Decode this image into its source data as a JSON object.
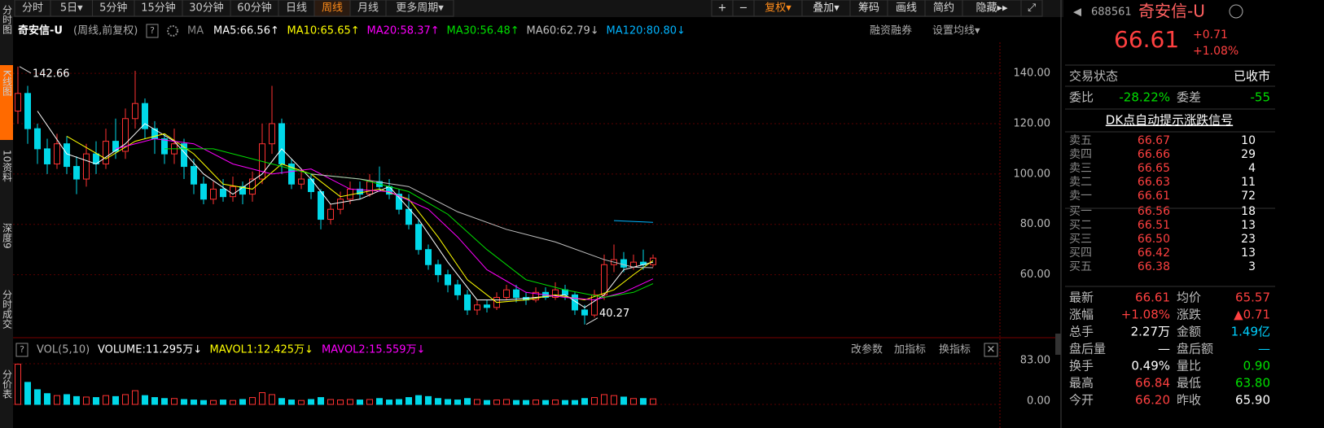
{
  "toolbar": {
    "tabs": [
      "分时",
      "5日▾",
      "5分钟",
      "15分钟",
      "30分钟",
      "60分钟",
      "日线",
      "周线",
      "月线",
      "更多周期▾"
    ],
    "active": 7,
    "tools": [
      "+",
      "−",
      "复权▾",
      "叠加▾",
      "筹码",
      "画线",
      "简约",
      "隐藏▸▸",
      "⤢"
    ]
  },
  "side_tabs": [
    {
      "text": "分时图",
      "active": false
    },
    {
      "text": "K线图",
      "active": true
    },
    {
      "text": "10资料",
      "active": false
    },
    {
      "text": "深度9",
      "active": false
    },
    {
      "text": "分时成交",
      "active": false
    },
    {
      "text": "分价表",
      "active": false
    }
  ],
  "info": {
    "name": "奇安信-U",
    "mode": "(周线,前复权)",
    "help": "?",
    "ma": "MA",
    "links": [
      "融资融券",
      "设置均线▾"
    ]
  },
  "chart_data": {
    "type": "candlestick",
    "candles": [
      [
        125,
        132,
        142.66,
        120
      ],
      [
        132,
        118,
        135,
        112
      ],
      [
        118,
        110,
        120,
        104
      ],
      [
        110,
        104,
        114,
        100
      ],
      [
        104,
        112,
        116,
        102
      ],
      [
        112,
        103,
        115,
        100
      ],
      [
        103,
        98,
        107,
        92
      ],
      [
        98,
        108,
        112,
        95
      ],
      [
        108,
        104,
        113,
        100
      ],
      [
        104,
        113,
        118,
        102
      ],
      [
        113,
        109,
        122,
        106
      ],
      [
        109,
        122,
        126,
        106
      ],
      [
        122,
        128,
        141,
        118
      ],
      [
        128,
        118,
        130,
        114
      ],
      [
        118,
        114,
        121,
        108
      ],
      [
        114,
        108,
        116,
        104
      ],
      [
        108,
        112,
        118,
        104
      ],
      [
        112,
        103,
        114,
        98
      ],
      [
        103,
        96,
        106,
        92
      ],
      [
        96,
        90,
        99,
        88
      ],
      [
        90,
        94,
        97,
        88
      ],
      [
        94,
        91,
        98,
        89
      ],
      [
        91,
        95,
        99,
        89
      ],
      [
        95,
        92,
        97,
        88
      ],
      [
        92,
        98,
        101,
        89
      ],
      [
        98,
        112,
        120,
        96
      ],
      [
        112,
        120,
        135,
        108
      ],
      [
        120,
        104,
        122,
        100
      ],
      [
        104,
        96,
        106,
        94
      ],
      [
        96,
        98,
        102,
        94
      ],
      [
        98,
        93,
        100,
        90
      ],
      [
        93,
        82,
        94,
        78
      ],
      [
        82,
        86,
        88,
        80
      ],
      [
        86,
        90,
        93,
        84
      ],
      [
        90,
        94,
        97,
        88
      ],
      [
        94,
        92,
        97,
        90
      ],
      [
        92,
        97,
        100,
        91
      ],
      [
        97,
        95,
        103,
        93
      ],
      [
        95,
        92,
        98,
        90
      ],
      [
        92,
        86,
        94,
        84
      ],
      [
        86,
        80,
        92,
        78
      ],
      [
        80,
        70,
        82,
        68
      ],
      [
        70,
        64,
        72,
        62
      ],
      [
        64,
        60,
        66,
        57
      ],
      [
        60,
        56,
        62,
        53
      ],
      [
        56,
        52,
        58,
        50
      ],
      [
        52,
        46,
        54,
        44
      ],
      [
        46,
        48,
        50,
        44
      ],
      [
        48,
        47,
        50,
        45
      ],
      [
        47,
        51,
        53,
        46
      ],
      [
        51,
        54,
        56,
        50
      ],
      [
        54,
        51,
        56,
        49
      ],
      [
        51,
        50,
        53,
        48
      ],
      [
        50,
        53,
        55,
        49
      ],
      [
        53,
        51,
        55,
        50
      ],
      [
        51,
        54,
        57,
        50
      ],
      [
        54,
        52,
        56,
        50
      ],
      [
        52,
        46,
        53,
        44
      ],
      [
        46,
        44,
        48,
        40.27
      ],
      [
        44,
        52,
        54,
        43
      ],
      [
        52,
        64,
        68,
        50
      ],
      [
        64,
        66,
        72,
        61
      ],
      [
        66,
        63,
        69,
        61
      ],
      [
        63,
        65,
        68,
        62
      ],
      [
        65,
        64,
        70,
        62
      ],
      [
        64,
        66.61,
        68,
        63
      ]
    ],
    "up_color": "#ff3232",
    "down_color": "#00d8e8",
    "ma_lines": [
      {
        "name": "MA5:66.56↑",
        "color": "#ffffff",
        "x": [
          2,
          5,
          8,
          11,
          13,
          16,
          19,
          22,
          25,
          27,
          30,
          32,
          35,
          38,
          41,
          44,
          47,
          50,
          53,
          56,
          58,
          60,
          62,
          65
        ],
        "values": [
          125,
          108,
          104,
          112,
          120,
          113,
          100,
          92,
          100,
          110,
          98,
          88,
          90,
          95,
          82,
          65,
          50,
          50,
          51,
          52,
          47,
          52,
          62,
          65
        ]
      },
      {
        "name": "MA10:65.65↑",
        "color": "#ffff00",
        "x": [
          5,
          9,
          12,
          15,
          18,
          21,
          24,
          27,
          30,
          33,
          37,
          40,
          43,
          46,
          49,
          52,
          55,
          58,
          61,
          63,
          65
        ],
        "values": [
          115,
          106,
          113,
          116,
          108,
          96,
          94,
          104,
          100,
          91,
          94,
          90,
          75,
          58,
          49,
          50,
          52,
          50,
          54,
          60,
          65.65
        ]
      },
      {
        "name": "MA20:58.37↑",
        "color": "#ff00ff",
        "x": [
          10,
          14,
          18,
          22,
          26,
          30,
          34,
          38,
          42,
          45,
          48,
          52,
          56,
          59,
          62,
          65
        ],
        "values": [
          110,
          114,
          112,
          104,
          100,
          102,
          94,
          93,
          86,
          75,
          62,
          53,
          51,
          50,
          53,
          58.37
        ]
      },
      {
        "name": "MA30:56.48↑",
        "color": "#00e000",
        "x": [
          15,
          20,
          25,
          30,
          35,
          40,
          44,
          48,
          52,
          56,
          60,
          63,
          65
        ],
        "values": [
          110,
          110,
          105,
          100,
          98,
          93,
          84,
          70,
          58,
          54,
          51,
          53,
          56.48
        ]
      },
      {
        "name": "MA60:62.79↓",
        "color": "#c0c0c0",
        "x": [
          30,
          35,
          40,
          45,
          50,
          55,
          60,
          63,
          65
        ],
        "values": [
          100,
          98,
          95,
          85,
          78,
          73,
          66,
          63,
          62.79
        ]
      },
      {
        "name": "MA120:80.80↓",
        "color": "#00b4ff",
        "x": [
          61,
          65
        ],
        "values": [
          81.5,
          80.8
        ]
      }
    ],
    "ylim": [
      35,
      152.3
    ],
    "yticks": [
      {
        "value": 60,
        "label": "60.00"
      },
      {
        "value": 80,
        "label": "80.00"
      },
      {
        "value": 100,
        "label": "100.00"
      },
      {
        "value": 120,
        "label": "120.00"
      },
      {
        "value": 140,
        "label": "140.00"
      }
    ],
    "annotations": [
      {
        "text": "142.66",
        "index": 0,
        "value": 142.66
      },
      {
        "text": "40.27",
        "index": 58,
        "value": 40.27
      }
    ],
    "volume": {
      "title": "VOL(5,10)",
      "legend": [
        {
          "text": "VOLUME:11.295万↓",
          "color": "#ffffff"
        },
        {
          "text": "MAVOL1:12.425万↓",
          "color": "#ffff00"
        },
        {
          "text": "MAVOL2:15.559万↓",
          "color": "#ff00ff"
        }
      ],
      "values": [
        82,
        45,
        30,
        22,
        18,
        20,
        16,
        15,
        14,
        18,
        16,
        20,
        28,
        18,
        14,
        12,
        12,
        10,
        9,
        8,
        8,
        9,
        8,
        10,
        14,
        24,
        20,
        12,
        9,
        8,
        10,
        14,
        10,
        9,
        10,
        9,
        10,
        12,
        9,
        10,
        14,
        18,
        16,
        12,
        10,
        9,
        12,
        10,
        8,
        9,
        10,
        8,
        8,
        9,
        8,
        9,
        8,
        8,
        12,
        14,
        20,
        18,
        15,
        12,
        12,
        11.295
      ],
      "ylim": [
        0,
        83
      ],
      "yticks": [
        {
          "value": 0,
          "label": "0.00"
        },
        {
          "value": 83,
          "label": "83.00"
        }
      ],
      "links": [
        "改参数",
        "加指标",
        "换指标",
        "✕"
      ]
    }
  },
  "quote": {
    "code": "688561",
    "name": "奇安信-U",
    "price": "66.61",
    "change": "+0.71",
    "pct": "+1.08%",
    "status_label": "交易状态",
    "status": "已收市",
    "wb_label": "委比",
    "wb": "-28.22%",
    "wc_label": "委差",
    "wc": "-55",
    "signal": "DK点自动提示涨跌信号",
    "book": [
      [
        "卖五",
        "66.67",
        "10"
      ],
      [
        "卖四",
        "66.66",
        "29"
      ],
      [
        "卖三",
        "66.65",
        "4"
      ],
      [
        "卖二",
        "66.63",
        "11"
      ],
      [
        "卖一",
        "66.61",
        "72"
      ],
      [
        "买一",
        "66.56",
        "18"
      ],
      [
        "买二",
        "66.51",
        "13"
      ],
      [
        "买三",
        "66.50",
        "23"
      ],
      [
        "买四",
        "66.42",
        "13"
      ],
      [
        "买五",
        "66.38",
        "3"
      ]
    ],
    "stats": [
      [
        [
          "最新",
          "66.61",
          "#ff4040"
        ],
        [
          "均价",
          "65.57",
          "#ff4040"
        ]
      ],
      [
        [
          "涨幅",
          "+1.08%",
          "#ff4040"
        ],
        [
          "涨跌",
          "▲0.71",
          "#ff4040"
        ]
      ],
      [
        [
          "总手",
          "2.27万",
          "#ffffff"
        ],
        [
          "金额",
          "1.49亿",
          "#00d0ff"
        ]
      ],
      [
        [
          "盘后量",
          "—",
          "#ffffff"
        ],
        [
          "盘后额",
          "—",
          "#00d0ff"
        ]
      ],
      [
        [
          "换手",
          "0.49%",
          "#ffffff"
        ],
        [
          "量比",
          "0.90",
          "#00e000"
        ]
      ],
      [
        [
          "最高",
          "66.84",
          "#ff4040"
        ],
        [
          "最低",
          "63.80",
          "#00e000"
        ]
      ],
      [
        [
          "今开",
          "66.20",
          "#ff4040"
        ],
        [
          "昨收",
          "65.90",
          "#ffffff"
        ]
      ]
    ]
  }
}
